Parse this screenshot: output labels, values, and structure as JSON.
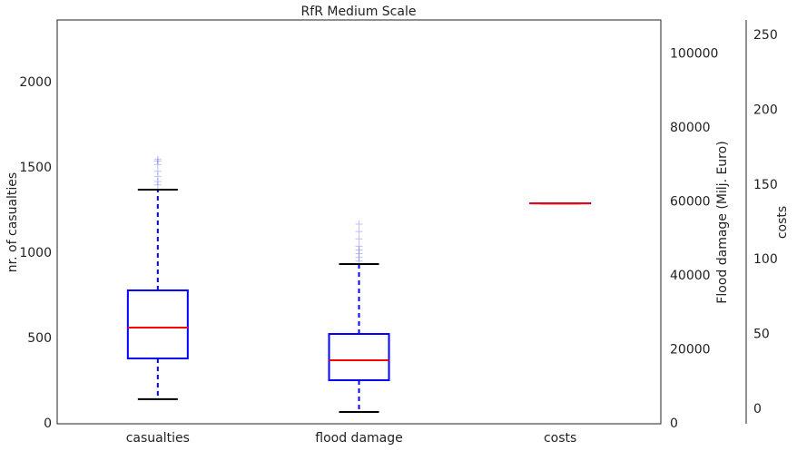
{
  "chart_data": {
    "type": "box",
    "title": "RfR Medium Scale",
    "categories": [
      "casualties",
      "flood damage",
      "costs"
    ],
    "ylabel": "nr. of casualties",
    "y2label": "Flood damage (Milj. Euro)",
    "y3label": "costs",
    "ylim": [
      0,
      2367
    ],
    "yticks": [
      0,
      500,
      1000,
      1500,
      2000
    ],
    "y2lim": [
      0,
      109200
    ],
    "y2ticks": [
      0,
      20000,
      40000,
      60000,
      80000,
      100000
    ],
    "y3lim": [
      -9.7,
      260.3
    ],
    "y3ticks": [
      0,
      50,
      100,
      150,
      200,
      250
    ],
    "box_color": "#0000ff",
    "median_color": "#ff0000",
    "cap_color": "#000000",
    "boxes": [
      {
        "axis": "y",
        "whislo": 144,
        "q1": 383,
        "med": 564,
        "q3": 782,
        "whishi": 1372,
        "fliers": [
          1400,
          1420,
          1450,
          1480,
          1520,
          1540,
          1550
        ]
      },
      {
        "axis": "y2",
        "whislo": 3190,
        "q1": 11780,
        "med": 17180,
        "q3": 24290,
        "whishi": 43190,
        "fliers": [
          44000,
          45000,
          46000,
          47000,
          48000,
          50000,
          52000,
          54000
        ]
      },
      {
        "axis": "y3",
        "whislo": 137.7,
        "q1": 137.7,
        "med": 137.7,
        "q3": 137.7,
        "whishi": 137.7,
        "fliers": []
      }
    ]
  }
}
